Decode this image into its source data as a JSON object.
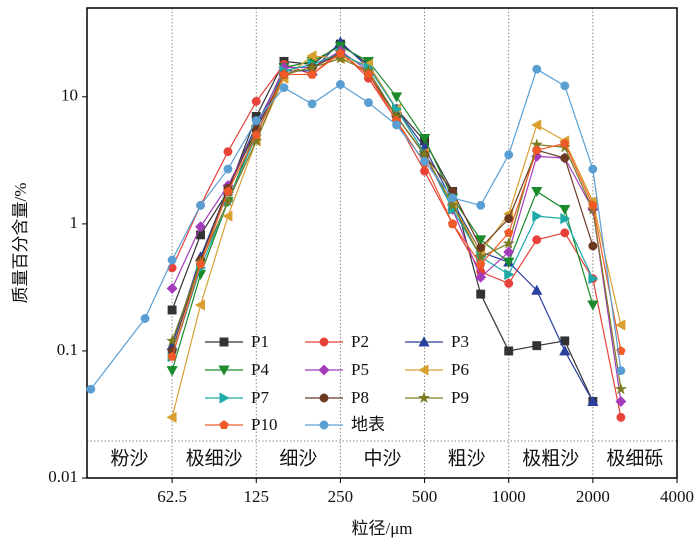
{
  "chart_data": {
    "type": "line",
    "xlabel": "粒径/μm",
    "ylabel": "质量百分含量/%",
    "xscale": "log",
    "yscale": "log",
    "xlim": [
      31,
      4000
    ],
    "ylim": [
      0.01,
      50
    ],
    "xticks": [
      62.5,
      125,
      250,
      500,
      1000,
      2000,
      4000
    ],
    "yticks": [
      0.01,
      0.1,
      1,
      10
    ],
    "zones": [
      "粉沙",
      "极细沙",
      "细沙",
      "中沙",
      "粗沙",
      "极粗沙",
      "极细砾"
    ],
    "legend": "lower left",
    "x": [
      32,
      50,
      62.5,
      79,
      99,
      125,
      157,
      198,
      250,
      315,
      397,
      500,
      630,
      794,
      1000,
      1260,
      1587,
      2000,
      2520
    ],
    "series": [
      {
        "name": "P1",
        "color": "#333333",
        "marker": "square",
        "values": [
          null,
          null,
          0.21,
          0.82,
          1.8,
          7.0,
          19,
          18,
          26,
          18,
          8,
          4.5,
          1.8,
          0.28,
          0.1,
          0.11,
          0.12,
          0.04,
          null
        ]
      },
      {
        "name": "P2",
        "color": "#e8413a",
        "marker": "circle",
        "values": [
          null,
          null,
          0.45,
          1.4,
          3.7,
          9.2,
          18,
          15,
          23,
          14,
          6.5,
          2.6,
          1.0,
          0.42,
          0.34,
          0.75,
          0.85,
          0.37,
          0.03
        ]
      },
      {
        "name": "P3",
        "color": "#2a3f9e",
        "marker": "triangle-up",
        "values": [
          null,
          null,
          0.11,
          0.55,
          1.9,
          6.0,
          16,
          16,
          27,
          17,
          8,
          4,
          1.5,
          0.6,
          0.5,
          0.3,
          0.1,
          0.04,
          null
        ]
      },
      {
        "name": "P4",
        "color": "#1a8a2a",
        "marker": "triangle-down",
        "values": [
          null,
          null,
          0.07,
          0.4,
          1.5,
          5.5,
          17,
          19,
          25,
          19,
          10,
          4.7,
          1.6,
          0.75,
          0.5,
          1.8,
          1.3,
          0.23,
          null
        ]
      },
      {
        "name": "P5",
        "color": "#a23cbb",
        "marker": "diamond",
        "values": [
          null,
          null,
          0.31,
          0.95,
          2.0,
          5.5,
          17,
          17,
          23,
          16,
          7,
          3.5,
          1.3,
          0.38,
          0.6,
          3.4,
          3.3,
          1.3,
          0.04
        ]
      },
      {
        "name": "P6",
        "color": "#d9a030",
        "marker": "triangle-left",
        "values": [
          null,
          null,
          0.03,
          0.23,
          1.15,
          4.5,
          14,
          21,
          20,
          18,
          8,
          3.6,
          1.4,
          0.6,
          1.2,
          6.0,
          4.5,
          1.5,
          0.16
        ]
      },
      {
        "name": "P7",
        "color": "#1eaaa6",
        "marker": "triangle-right",
        "values": [
          null,
          null,
          0.09,
          0.45,
          1.5,
          5,
          16,
          18,
          22,
          17,
          8,
          3.6,
          1.3,
          0.55,
          0.4,
          1.15,
          1.1,
          0.37,
          null
        ]
      },
      {
        "name": "P8",
        "color": "#6b3a20",
        "marker": "circle",
        "values": [
          null,
          null,
          0.1,
          0.52,
          1.9,
          5.5,
          15,
          17,
          22,
          15,
          7,
          3.5,
          1.8,
          0.65,
          1.1,
          3.8,
          3.3,
          0.67,
          null
        ]
      },
      {
        "name": "P9",
        "color": "#7a7a20",
        "marker": "star",
        "values": [
          null,
          null,
          0.12,
          0.5,
          1.5,
          4.5,
          15,
          17,
          20,
          16,
          7,
          3.5,
          1.4,
          0.55,
          0.7,
          4.2,
          4.0,
          1.3,
          0.05
        ]
      },
      {
        "name": "P10",
        "color": "#f05a28",
        "marker": "pentagon",
        "values": [
          null,
          null,
          0.09,
          0.48,
          1.8,
          5,
          15,
          15,
          22,
          15,
          6.5,
          3,
          1.0,
          0.48,
          0.85,
          3.8,
          4.3,
          1.4,
          0.1
        ]
      },
      {
        "name": "地表",
        "color": "#5a9fd4",
        "marker": "circle",
        "values": [
          0.05,
          0.18,
          0.52,
          1.4,
          2.7,
          6.5,
          11.8,
          8.8,
          12.5,
          9.0,
          6.0,
          3.1,
          1.6,
          1.4,
          3.5,
          16.5,
          12.2,
          2.7,
          0.07
        ]
      }
    ]
  }
}
